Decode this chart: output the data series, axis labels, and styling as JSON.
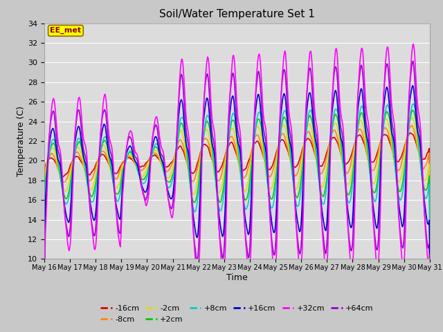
{
  "title": "Soil/Water Temperature Set 1",
  "xlabel": "Time",
  "ylabel": "Temperature (C)",
  "ylim": [
    10,
    34
  ],
  "yticks": [
    10,
    12,
    14,
    16,
    18,
    20,
    22,
    24,
    26,
    28,
    30,
    32,
    34
  ],
  "x_tick_labels": [
    "May 16",
    "May 17",
    "May 18",
    "May 19",
    "May 20",
    "May 21",
    "May 22",
    "May 23",
    "May 24",
    "May 25",
    "May 26",
    "May 27",
    "May 28",
    "May 29",
    "May 30",
    "May 31"
  ],
  "series_order": [
    "-16cm",
    "-8cm",
    "-2cm",
    "+2cm",
    "+8cm",
    "+16cm",
    "+32cm",
    "+64cm"
  ],
  "series": {
    "-16cm": {
      "color": "#dd0000",
      "lw": 1.2
    },
    "-8cm": {
      "color": "#ff8800",
      "lw": 1.2
    },
    "-2cm": {
      "color": "#dddd00",
      "lw": 1.2
    },
    "+2cm": {
      "color": "#00cc00",
      "lw": 1.2
    },
    "+8cm": {
      "color": "#00cccc",
      "lw": 1.2
    },
    "+16cm": {
      "color": "#0000cc",
      "lw": 1.2
    },
    "+32cm": {
      "color": "#ff00ff",
      "lw": 1.2
    },
    "+64cm": {
      "color": "#9900cc",
      "lw": 1.2
    }
  },
  "annotation_text": "EE_met",
  "annotation_color": "#880000",
  "annotation_bg": "#ffff00",
  "bg_color": "#e8e8e8",
  "plot_bg": "#dcdcdc",
  "grid_color": "#ffffff",
  "days": 15,
  "n_points": 720
}
